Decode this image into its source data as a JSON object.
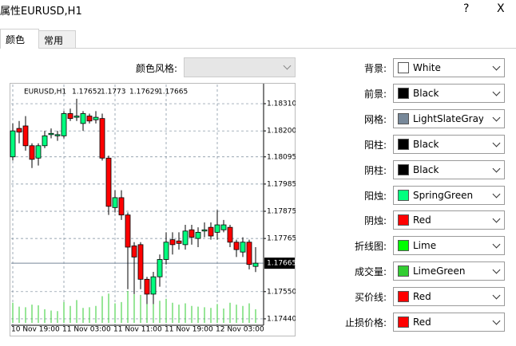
{
  "window": {
    "title": "属性EURUSD,H1",
    "help": "?",
    "close": "X"
  },
  "tabs": [
    "颜色",
    "常用"
  ],
  "style_label": "颜色风格:",
  "color_settings": [
    {
      "label": "背景:",
      "color": "White"
    },
    {
      "label": "前景:",
      "color": "Black"
    },
    {
      "label": "网格:",
      "color": "LightSlateGray"
    },
    {
      "label": "阳柱:",
      "color": "Black"
    },
    {
      "label": "阴柱:",
      "color": "Black"
    },
    {
      "label": "阳烛:",
      "color": "SpringGreen"
    },
    {
      "label": "阴烛:",
      "color": "Red"
    },
    {
      "label": "折线图:",
      "color": "Lime"
    },
    {
      "label": "成交量:",
      "color": "LimeGreen"
    },
    {
      "label": "买价线:",
      "color": "Red"
    },
    {
      "label": "止损价格:",
      "color": "Red"
    }
  ],
  "preview": {
    "symbol": "EURUSD,H1",
    "ylim": [
      1.17414,
      1.18394
    ],
    "yticks": [
      {
        "value": 1.1831,
        "label": "1.18310"
      },
      {
        "value": 1.182,
        "label": "1.18200"
      },
      {
        "value": 1.18095,
        "label": "1.18095"
      },
      {
        "value": 1.17985,
        "label": "1.17985"
      },
      {
        "value": 1.17875,
        "label": "1.17875"
      },
      {
        "value": 1.17765,
        "label": "1.17765"
      },
      {
        "value": 1.1755,
        "label": "1.17550"
      },
      {
        "value": 1.1744,
        "label": "1.17440"
      }
    ],
    "times": [
      "10 Nov 19:00",
      null,
      null,
      null,
      null,
      null,
      null,
      null,
      "11 Nov 03:00",
      null,
      null,
      null,
      null,
      null,
      null,
      null,
      "11 Nov 11:00",
      null,
      null,
      null,
      null,
      null,
      null,
      null,
      "11 Nov 19:00",
      null,
      null,
      null,
      null,
      null,
      null,
      null,
      "12 Nov 03:00",
      null,
      null,
      null,
      null,
      null,
      null
    ],
    "candles": [
      {
        "open": 1.18095,
        "high": 1.1823,
        "low": 1.1808,
        "close": 1.182
      },
      {
        "open": 1.1821,
        "high": 1.1824,
        "low": 1.1815,
        "close": 1.18195
      },
      {
        "open": 1.1822,
        "high": 1.1826,
        "low": 1.1812,
        "close": 1.1814
      },
      {
        "open": 1.1814,
        "high": 1.1815,
        "low": 1.1805,
        "close": 1.18085
      },
      {
        "open": 1.1809,
        "high": 1.1815,
        "low": 1.1806,
        "close": 1.1814
      },
      {
        "open": 1.1814,
        "high": 1.182,
        "low": 1.1813,
        "close": 1.1818
      },
      {
        "open": 1.18185,
        "high": 1.1821,
        "low": 1.1817,
        "close": 1.1819
      },
      {
        "open": 1.1818,
        "high": 1.182,
        "low": 1.1816,
        "close": 1.18185
      },
      {
        "open": 1.1818,
        "high": 1.1828,
        "low": 1.1817,
        "close": 1.1827
      },
      {
        "open": 1.1827,
        "high": 1.1829,
        "low": 1.1824,
        "close": 1.1825
      },
      {
        "open": 1.18255,
        "high": 1.1833,
        "low": 1.1824,
        "close": 1.1826
      },
      {
        "open": 1.1823,
        "high": 1.1828,
        "low": 1.182,
        "close": 1.1827
      },
      {
        "open": 1.1826,
        "high": 1.1827,
        "low": 1.1823,
        "close": 1.1824
      },
      {
        "open": 1.18245,
        "high": 1.1828,
        "low": 1.1823,
        "close": 1.18255
      },
      {
        "open": 1.1825,
        "high": 1.1827,
        "low": 1.1808,
        "close": 1.1809
      },
      {
        "open": 1.1809,
        "high": 1.181,
        "low": 1.1786,
        "close": 1.17895
      },
      {
        "open": 1.1789,
        "high": 1.1796,
        "low": 1.1787,
        "close": 1.1793
      },
      {
        "open": 1.1793,
        "high": 1.1796,
        "low": 1.1784,
        "close": 1.1786
      },
      {
        "open": 1.1786,
        "high": 1.1787,
        "low": 1.1756,
        "close": 1.1773
      },
      {
        "open": 1.17735,
        "high": 1.1775,
        "low": 1.1754,
        "close": 1.1769
      },
      {
        "open": 1.1774,
        "high": 1.1775,
        "low": 1.1756,
        "close": 1.176
      },
      {
        "open": 1.176,
        "high": 1.1761,
        "low": 1.175,
        "close": 1.1754
      },
      {
        "open": 1.1754,
        "high": 1.1763,
        "low": 1.175,
        "close": 1.1761
      },
      {
        "open": 1.1761,
        "high": 1.177,
        "low": 1.1757,
        "close": 1.1768
      },
      {
        "open": 1.1768,
        "high": 1.1779,
        "low": 1.1766,
        "close": 1.1775
      },
      {
        "open": 1.1776,
        "high": 1.1779,
        "low": 1.177,
        "close": 1.1774
      },
      {
        "open": 1.17755,
        "high": 1.1779,
        "low": 1.1772,
        "close": 1.17745
      },
      {
        "open": 1.1774,
        "high": 1.1782,
        "low": 1.1772,
        "close": 1.17795
      },
      {
        "open": 1.178,
        "high": 1.1782,
        "low": 1.1774,
        "close": 1.1777
      },
      {
        "open": 1.17765,
        "high": 1.1781,
        "low": 1.1773,
        "close": 1.1779
      },
      {
        "open": 1.17795,
        "high": 1.1783,
        "low": 1.1777,
        "close": 1.178
      },
      {
        "open": 1.1781,
        "high": 1.1783,
        "low": 1.1776,
        "close": 1.17775
      },
      {
        "open": 1.1779,
        "high": 1.1788,
        "low": 1.1776,
        "close": 1.1782
      },
      {
        "open": 1.178,
        "high": 1.1784,
        "low": 1.1779,
        "close": 1.1782
      },
      {
        "open": 1.1781,
        "high": 1.1782,
        "low": 1.1773,
        "close": 1.1775
      },
      {
        "open": 1.1775,
        "high": 1.1776,
        "low": 1.1769,
        "close": 1.1772
      },
      {
        "open": 1.1771,
        "high": 1.1777,
        "low": 1.1769,
        "close": 1.1775
      },
      {
        "open": 1.1775,
        "high": 1.1776,
        "low": 1.1764,
        "close": 1.1766
      },
      {
        "open": 1.17652,
        "high": 1.1773,
        "low": 1.17629,
        "close": 1.17665
      }
    ],
    "volumes": [
      620,
      500,
      480,
      560,
      540,
      420,
      380,
      360,
      640,
      520,
      700,
      460,
      480,
      520,
      820,
      900,
      600,
      640,
      980,
      880,
      860,
      760,
      700,
      680,
      740,
      620,
      560,
      600,
      520,
      500,
      480,
      460,
      580,
      440,
      620,
      560,
      520,
      600,
      420
    ]
  }
}
